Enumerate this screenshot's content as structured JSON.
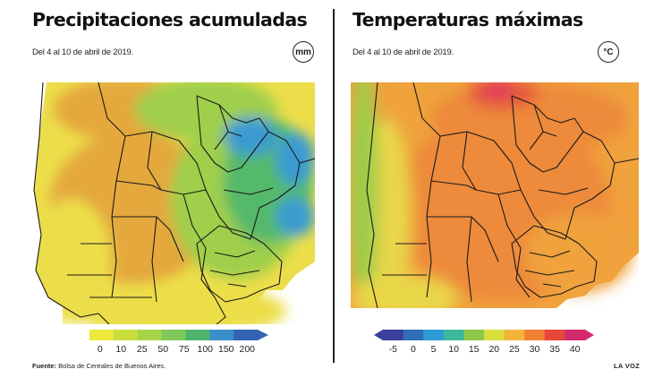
{
  "left": {
    "title": "Precipitaciones acumuladas",
    "subtitle": "Del 4 al 10 de abril de 2019.",
    "unit": "mm",
    "legend_labels": [
      "0",
      "10",
      "25",
      "50",
      "75",
      "100",
      "150",
      "200"
    ],
    "legend_colors": [
      "#ece83c",
      "#c9de3e",
      "#a8d449",
      "#7fc85a",
      "#4fb46e",
      "#3a8fc8",
      "#3463b3",
      "#5b3f9d"
    ]
  },
  "right": {
    "title": "Temperaturas máximas",
    "subtitle": "Del 4 al 10 de abril de 2019.",
    "unit": "°C",
    "legend_labels": [
      "-5",
      "0",
      "5",
      "10",
      "15",
      "20",
      "25",
      "30",
      "35",
      "40"
    ],
    "legend_colors": [
      "#3b3f9a",
      "#2e6fb5",
      "#2b9bd4",
      "#3cb89a",
      "#8cc84a",
      "#d9df3c",
      "#f2b53a",
      "#ef8034",
      "#e6473a",
      "#d12a6d",
      "#c52b9b"
    ]
  },
  "footer": {
    "source_label": "Fuente:",
    "source_text": " Bolsa de Cereales de Buenos Aires.",
    "credit": "LA VOZ"
  },
  "colors": {
    "sea": "#ffffff",
    "rain_dry": "#e4a83c",
    "rain_low": "#ecde4a",
    "rain_mid": "#9fcf4c",
    "rain_high": "#55b96a",
    "rain_blue": "#3a9bd0",
    "temp_cool": "#9ccc4a",
    "temp_mild": "#e9d648",
    "temp_warm": "#f0a23c",
    "temp_hot": "#ed8a3a",
    "temp_red": "#e65a3e",
    "temp_pink": "#e2375c"
  }
}
